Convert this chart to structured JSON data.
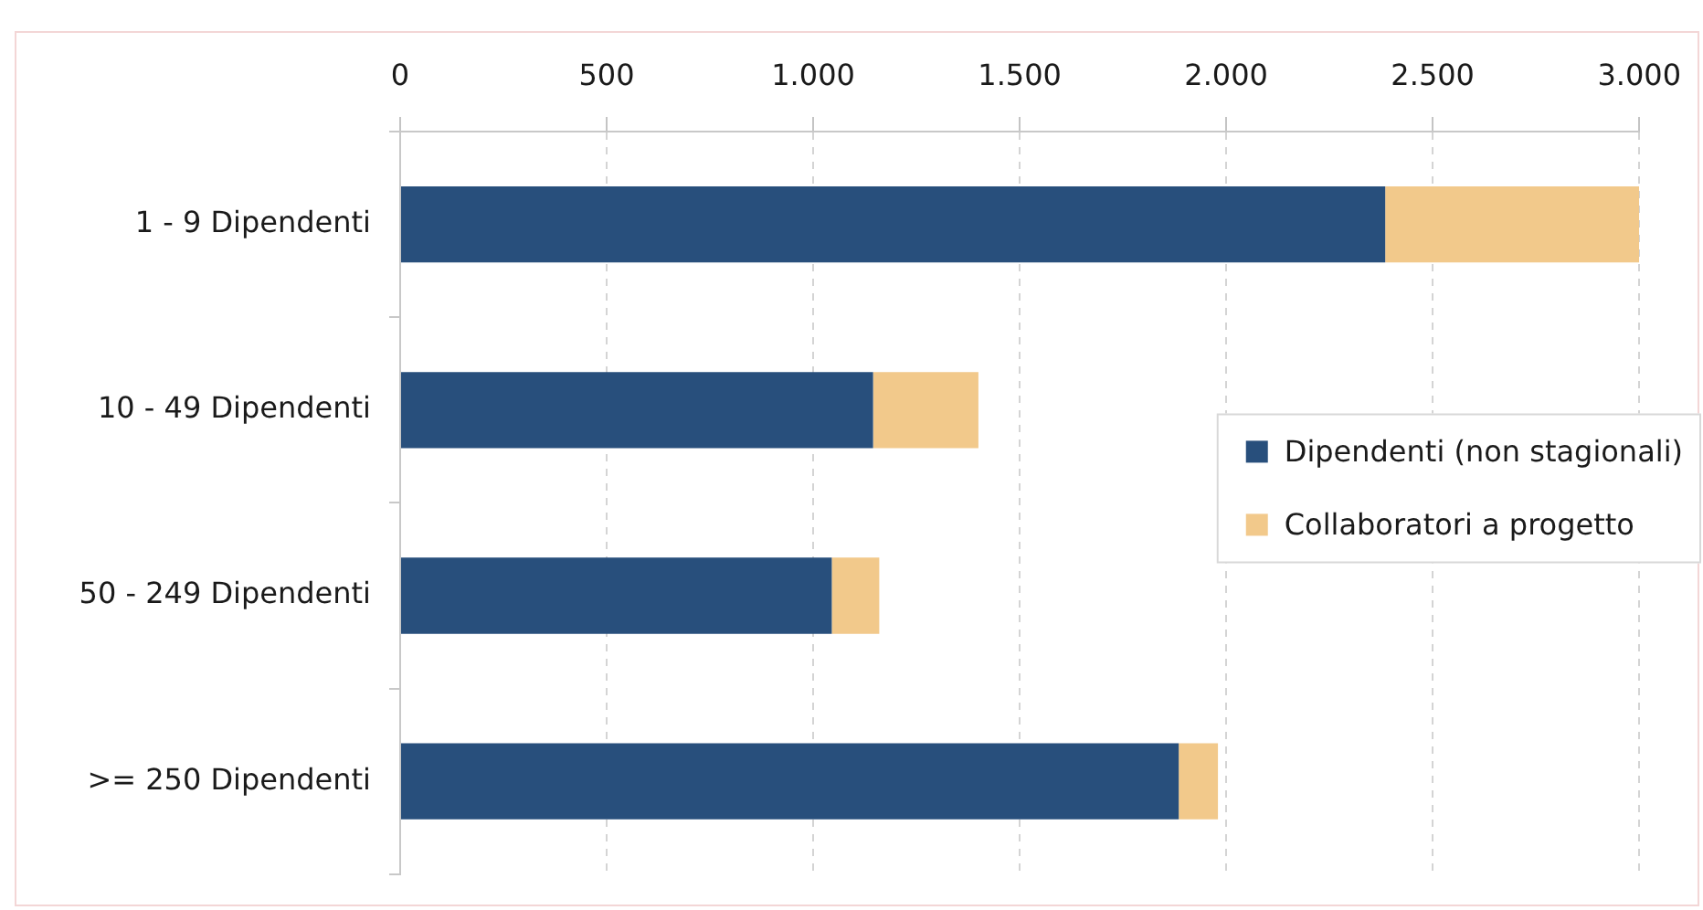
{
  "chart_data": {
    "type": "bar",
    "orientation": "horizontal",
    "stacked": true,
    "categories": [
      "1 - 9 Dipendenti",
      "10 - 49 Dipendenti",
      "50 - 249 Dipendenti",
      ">= 250 Dipendenti"
    ],
    "series": [
      {
        "name": "Dipendenti (non stagionali)",
        "color": "#284f7c",
        "values": [
          2385,
          1145,
          1045,
          1885
        ]
      },
      {
        "name": "Collaboratori a progetto",
        "color": "#f2c98b",
        "values": [
          615,
          255,
          115,
          95
        ]
      }
    ],
    "xlim": [
      0,
      3000
    ],
    "xticks": [
      0,
      500,
      {
        "value": 1000,
        "label": "1.000"
      },
      {
        "value": 1500,
        "label": "1.500"
      },
      {
        "value": 2000,
        "label": "2.000"
      },
      {
        "value": 2500,
        "label": "2.500"
      },
      {
        "value": 3000,
        "label": "3.000"
      }
    ],
    "grid": "x",
    "legend": "right"
  }
}
